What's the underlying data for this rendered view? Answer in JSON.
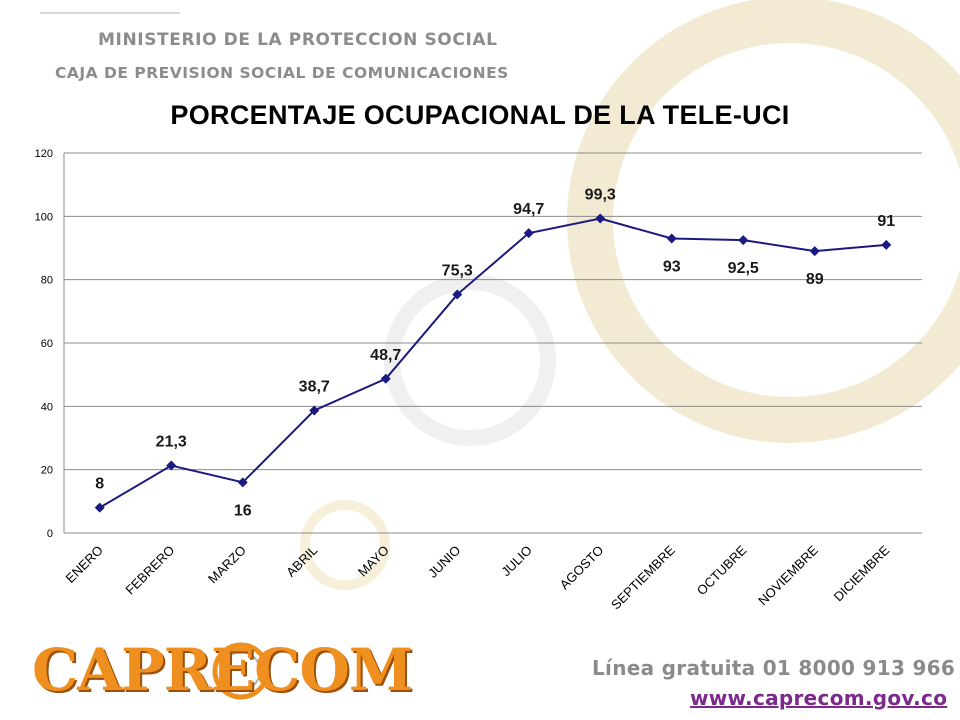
{
  "header": {
    "ministry": "MINISTERIO DE LA PROTECCION SOCIAL",
    "caja": "CAJA DE PREVISION SOCIAL DE COMUNICACIONES"
  },
  "footer": {
    "logo": "CAPRECOM",
    "phone": "Línea gratuita 01 8000 913 966",
    "url": "www.caprecom.gov.co"
  },
  "colors": {
    "series": "#1a1a80",
    "gridline": "#8c8c8c",
    "logo_orange": "#ee8f1f",
    "url_purple": "#7b2a8c",
    "watermark": "#f2ead2"
  },
  "chart_data": {
    "type": "line",
    "title": "PORCENTAJE OCUPACIONAL DE LA TELE-UCI",
    "xlabel": "",
    "ylabel": "",
    "categories": [
      "ENERO",
      "FEBRERO",
      "MARZO",
      "ABRIL",
      "MAYO",
      "JUNIO",
      "JULIO",
      "AGOSTO",
      "SEPTIEMBRE",
      "OCTUBRE",
      "NOVIEMBRE",
      "DICIEMBRE"
    ],
    "values": [
      8,
      21.3,
      16,
      38.7,
      48.7,
      75.3,
      94.7,
      99.3,
      93,
      92.5,
      89,
      91
    ],
    "data_labels": [
      "8",
      "21,3",
      "16",
      "38,7",
      "48,7",
      "75,3",
      "94,7",
      "99,3",
      "93",
      "92,5",
      "89",
      "91"
    ],
    "ylim": [
      0,
      120
    ],
    "yticks": [
      0,
      20,
      40,
      60,
      80,
      100,
      120
    ],
    "ytick_labels": [
      "0",
      "20",
      "40",
      "60",
      "80",
      "100",
      "120"
    ],
    "grid": true,
    "legend": "none",
    "marker": "diamond"
  }
}
